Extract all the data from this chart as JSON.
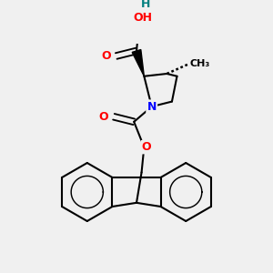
{
  "bg_color": "#f0f0f0",
  "atom_colors": {
    "C": "#000000",
    "N": "#0000ff",
    "O": "#ff0000",
    "H": "#008080"
  },
  "bond_color": "#000000",
  "bond_width": 1.5,
  "figsize": [
    3.0,
    3.0
  ],
  "dpi": 100
}
